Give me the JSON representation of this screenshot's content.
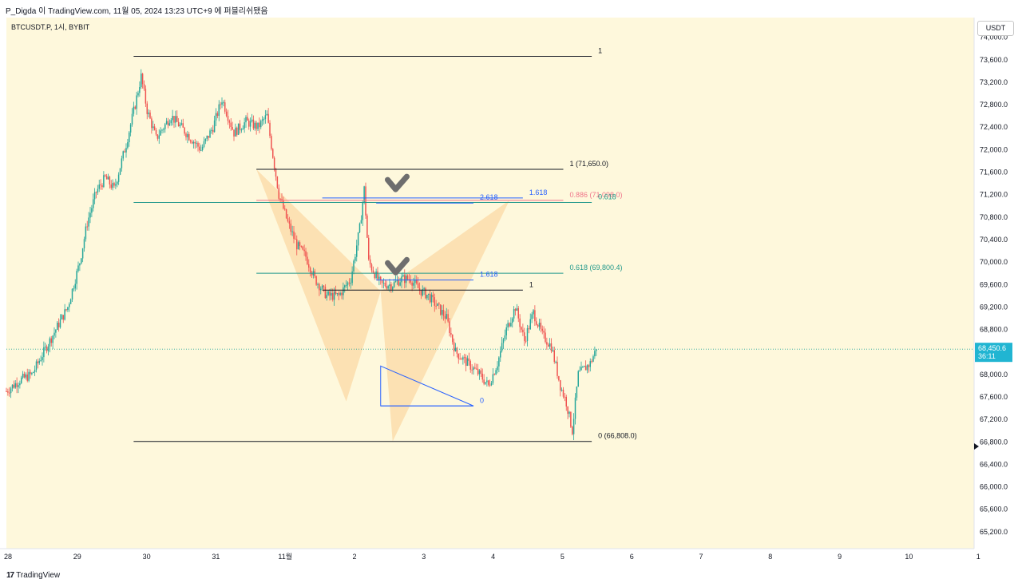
{
  "header": {
    "caption": "P_Digda 이 TradingView.com, 11월 05, 2024 13:23 UTC+9 에 퍼블리쉬됐음"
  },
  "footer": {
    "brand": "TradingView",
    "logo_text": "17"
  },
  "colors": {
    "background": "#fef8dc",
    "up": "#26a69a",
    "down": "#ef5350",
    "pattern_fill": "#fbd9a5",
    "fib_teal": "#22998b",
    "fib_red": "#f0768b",
    "fib_blue": "#2962ff",
    "black_line": "#131722",
    "last_price_tag": "#21b5d2",
    "checkmark": "#6e6e6e"
  },
  "chart_data": {
    "type": "candlestick",
    "symbol": "BTCUSDT.P, 1시, BYBIT",
    "currency": "USDT",
    "x_tick_labels": [
      "28",
      "29",
      "30",
      "31",
      "11월",
      "2",
      "3",
      "4",
      "5",
      "6",
      "7",
      "8",
      "9",
      "10",
      "1"
    ],
    "y_ticks": [
      65200,
      65600,
      66000,
      66400,
      66800,
      67200,
      67600,
      68000,
      68400,
      68800,
      69200,
      69600,
      70000,
      70400,
      70800,
      71200,
      71600,
      72000,
      72400,
      72800,
      73200,
      73600,
      74000
    ],
    "y_range": [
      64900,
      74350
    ],
    "last_price": {
      "value": "68,450.6",
      "countdown": "36:11"
    },
    "candle_path_points": [
      [
        0,
        67700
      ],
      [
        9,
        67900
      ],
      [
        17,
        68000
      ],
      [
        25,
        68400
      ],
      [
        33,
        68800
      ],
      [
        41,
        69200
      ],
      [
        49,
        70000
      ],
      [
        54,
        70700
      ],
      [
        60,
        71250
      ],
      [
        66,
        71500
      ],
      [
        72,
        71300
      ],
      [
        80,
        72100
      ],
      [
        86,
        72800
      ],
      [
        90,
        73300
      ],
      [
        94,
        72700
      ],
      [
        100,
        72200
      ],
      [
        110,
        72600
      ],
      [
        120,
        72300
      ],
      [
        130,
        72000
      ],
      [
        138,
        72400
      ],
      [
        144,
        72900
      ],
      [
        152,
        72300
      ],
      [
        160,
        72500
      ],
      [
        168,
        72400
      ],
      [
        174,
        72600
      ],
      [
        182,
        71200
      ],
      [
        188,
        70700
      ],
      [
        194,
        70300
      ],
      [
        200,
        70100
      ],
      [
        206,
        69700
      ],
      [
        214,
        69400
      ],
      [
        222,
        69400
      ],
      [
        230,
        69700
      ],
      [
        236,
        70600
      ],
      [
        239,
        71300
      ],
      [
        242,
        70000
      ],
      [
        250,
        69600
      ],
      [
        258,
        69600
      ],
      [
        264,
        69700
      ],
      [
        270,
        69700
      ],
      [
        276,
        69500
      ],
      [
        282,
        69400
      ],
      [
        288,
        69200
      ],
      [
        294,
        69000
      ],
      [
        300,
        68400
      ],
      [
        308,
        68200
      ],
      [
        316,
        68000
      ],
      [
        322,
        67800
      ],
      [
        328,
        68200
      ],
      [
        334,
        68800
      ],
      [
        340,
        69200
      ],
      [
        346,
        68600
      ],
      [
        352,
        69100
      ],
      [
        358,
        68700
      ],
      [
        364,
        68500
      ],
      [
        370,
        67800
      ],
      [
        374,
        67500
      ],
      [
        378,
        67000
      ],
      [
        382,
        68000
      ],
      [
        386,
        68100
      ],
      [
        390,
        68200
      ],
      [
        394,
        68450
      ]
    ],
    "horizontal_levels": [
      {
        "price": 73660,
        "from_bar": 85,
        "to_bar": 391,
        "color": "black_line",
        "label": "1"
      },
      {
        "price": 71650,
        "from_bar": 167,
        "to_bar": 372,
        "color": "black_line",
        "label": "1 (71,650.0)"
      },
      {
        "price": 71140,
        "from_bar": 211,
        "to_bar": 345,
        "color": "fib_blue",
        "label": "1.618"
      },
      {
        "price": 71098,
        "from_bar": 167,
        "to_bar": 372,
        "color": "fib_red",
        "label": "0.886 (71,098.0)"
      },
      {
        "price": 71060,
        "from_bar": 85,
        "to_bar": 391,
        "color": "fib_teal",
        "label": "0.618"
      },
      {
        "price": 71050,
        "from_bar": 247,
        "to_bar": 312,
        "color": "fib_blue",
        "label": "2.618"
      },
      {
        "price": 69800,
        "from_bar": 167,
        "to_bar": 372,
        "color": "fib_teal",
        "label": "0.618 (69,800.4)"
      },
      {
        "price": 69680,
        "from_bar": 247,
        "to_bar": 312,
        "color": "fib_blue",
        "label": "1.618"
      },
      {
        "price": 69500,
        "from_bar": 211,
        "to_bar": 345,
        "color": "black_line",
        "label": "1"
      },
      {
        "price": 67440,
        "from_bar": 250,
        "to_bar": 312,
        "color": "fib_blue",
        "label": "0"
      },
      {
        "price": 66808,
        "from_bar": 85,
        "to_bar": 391,
        "color": "black_line",
        "label": "0 (66,808.0)"
      }
    ],
    "pattern_points": [
      [
        167,
        71650
      ],
      [
        227,
        67520
      ],
      [
        250,
        69480
      ],
      [
        258,
        66808
      ],
      [
        336,
        71098
      ]
    ],
    "projection_triangle": [
      [
        250,
        68150
      ],
      [
        312,
        67440
      ],
      [
        250,
        67440
      ]
    ]
  }
}
